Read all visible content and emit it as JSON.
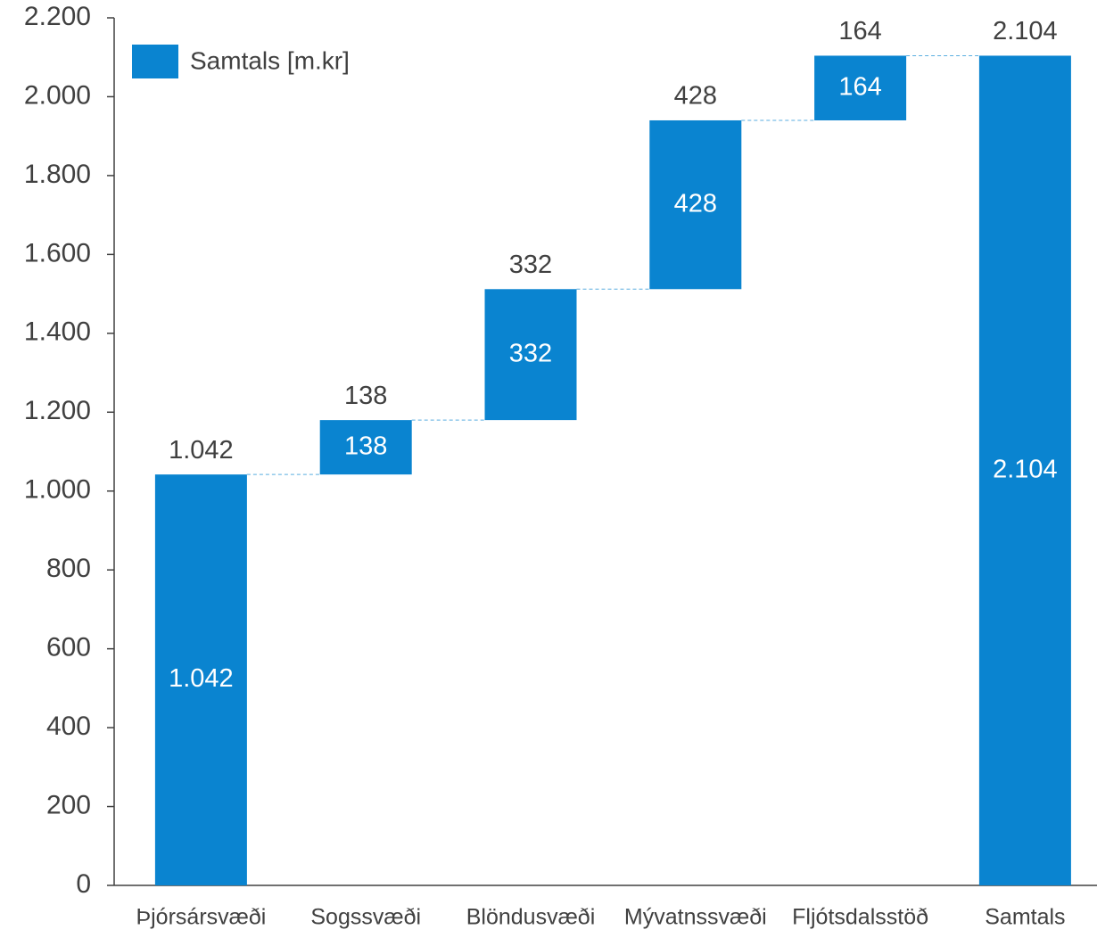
{
  "chart_data": {
    "type": "waterfall",
    "categories": [
      "Þjórsársvæði",
      "Sogssvæði",
      "Blöndusvæði",
      "Mývatnssvæði",
      "Fljótsdalsstöð",
      "Samtals"
    ],
    "series": [
      {
        "name": "Samtals [m.kr]",
        "color": "#0a84d0",
        "values": [
          1042,
          138,
          332,
          428,
          164,
          2104
        ],
        "value_labels": [
          "1.042",
          "138",
          "332",
          "428",
          "164",
          "2.104"
        ]
      }
    ],
    "ylim": [
      0,
      2200
    ],
    "yticks": [
      0,
      200,
      400,
      600,
      800,
      {
        "value": 1000,
        "label": "1.000"
      },
      {
        "value": 1200,
        "label": "1.200"
      },
      {
        "value": 1400,
        "label": "1.400"
      },
      {
        "value": 1600,
        "label": "1.600"
      },
      {
        "value": 1800,
        "label": "1.800"
      },
      {
        "value": 2000,
        "label": "2.000"
      },
      {
        "value": 2200,
        "label": "2.200"
      }
    ],
    "legend": "top-left"
  }
}
